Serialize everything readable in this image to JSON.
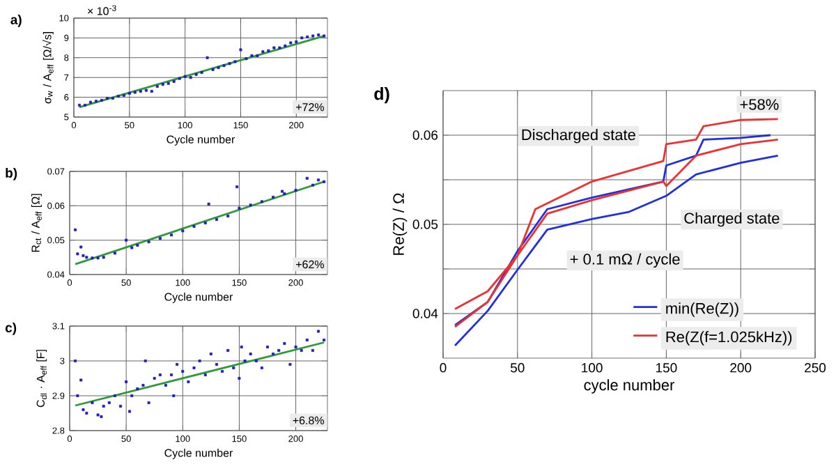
{
  "chart_data": [
    {
      "type": "scatter",
      "title": "a)",
      "xlabel": "Cycle number",
      "ylabel": "σ$_{w}$ / A$_{eff}$ [Ω/√s]",
      "xlim": [
        0,
        228
      ],
      "ylim": [
        5,
        10
      ],
      "xticks": [
        0,
        50,
        100,
        150,
        200
      ],
      "yticks": [
        5,
        6,
        7,
        8,
        9,
        10
      ],
      "grid": true,
      "annotations": [
        "× 10$^{-3}$",
        "+72%"
      ],
      "series": [
        {
          "type": "scatter",
          "marker": "square",
          "color": "#2020c0",
          "x": [
            5,
            10,
            15,
            20,
            25,
            30,
            35,
            40,
            45,
            50,
            55,
            60,
            65,
            70,
            75,
            80,
            85,
            90,
            95,
            100,
            105,
            110,
            115,
            120,
            125,
            130,
            135,
            140,
            145,
            150,
            155,
            160,
            165,
            170,
            175,
            180,
            185,
            190,
            195,
            200,
            205,
            210,
            215,
            220,
            225
          ],
          "values": [
            5.6,
            5.6,
            5.75,
            5.8,
            5.85,
            5.95,
            5.95,
            6.05,
            6.1,
            6.2,
            6.25,
            6.3,
            6.35,
            6.3,
            6.55,
            6.65,
            6.7,
            6.8,
            6.95,
            7.05,
            7.0,
            7.15,
            7.25,
            8.0,
            7.4,
            7.5,
            7.6,
            7.7,
            7.8,
            8.4,
            7.95,
            8.1,
            8.1,
            8.3,
            8.35,
            8.5,
            8.5,
            8.6,
            8.75,
            8.8,
            9.0,
            9.05,
            9.1,
            9.15,
            9.1
          ]
        },
        {
          "type": "line",
          "color": "#2e9a3a",
          "x": [
            5,
            225
          ],
          "values": [
            5.5,
            9.1
          ]
        }
      ]
    },
    {
      "type": "scatter",
      "title": "b)",
      "xlabel": "Cycle number",
      "ylabel": "R$_{ct}$ / A$_{eff}$ [Ω]",
      "xlim": [
        0,
        228
      ],
      "ylim": [
        0.04,
        0.07
      ],
      "xticks": [
        0,
        50,
        100,
        150,
        200
      ],
      "yticks": [
        0.04,
        0.05,
        0.06,
        0.07
      ],
      "grid": true,
      "annotations": [
        "+62%"
      ],
      "series": [
        {
          "type": "scatter",
          "marker": "square",
          "color": "#2020c0",
          "x": [
            5,
            7,
            10,
            12,
            15,
            20,
            25,
            30,
            40,
            50,
            55,
            60,
            70,
            80,
            90,
            100,
            110,
            120,
            123,
            130,
            140,
            148,
            150,
            160,
            170,
            180,
            188,
            190,
            200,
            210,
            215,
            220,
            225
          ],
          "values": [
            0.053,
            0.046,
            0.048,
            0.0455,
            0.045,
            0.0448,
            0.0448,
            0.045,
            0.0462,
            0.05,
            0.0478,
            0.0485,
            0.0495,
            0.0505,
            0.0515,
            0.0527,
            0.054,
            0.055,
            0.0605,
            0.056,
            0.057,
            0.0655,
            0.0593,
            0.0602,
            0.0612,
            0.0625,
            0.0642,
            0.0635,
            0.0645,
            0.068,
            0.066,
            0.0675,
            0.067
          ]
        },
        {
          "type": "line",
          "color": "#2e9a3a",
          "x": [
            5,
            225
          ],
          "values": [
            0.043,
            0.067
          ]
        }
      ]
    },
    {
      "type": "scatter",
      "title": "c)",
      "xlabel": "Cycle number",
      "ylabel": "C$_{dl}$ · A$_{eff}$ [F]",
      "xlim": [
        0,
        228
      ],
      "ylim": [
        2.8,
        3.1
      ],
      "xticks": [
        0,
        50,
        100,
        150,
        200
      ],
      "yticks": [
        2.8,
        2.9,
        3,
        3.1
      ],
      "grid": true,
      "annotations": [
        "+6.8%"
      ],
      "series": [
        {
          "type": "scatter",
          "marker": "square",
          "color": "#2020c0",
          "x": [
            5,
            7,
            10,
            12,
            15,
            20,
            25,
            28,
            30,
            35,
            40,
            45,
            50,
            53,
            55,
            60,
            65,
            67,
            70,
            75,
            80,
            85,
            90,
            92,
            95,
            100,
            105,
            110,
            115,
            120,
            125,
            130,
            135,
            140,
            145,
            150,
            152,
            155,
            160,
            165,
            170,
            175,
            180,
            185,
            190,
            195,
            200,
            205,
            210,
            215,
            220,
            225
          ],
          "values": [
            3.0,
            2.9,
            2.945,
            2.86,
            2.85,
            2.88,
            2.845,
            2.84,
            2.87,
            2.88,
            2.9,
            2.87,
            2.94,
            2.855,
            2.9,
            2.92,
            2.93,
            3.0,
            2.88,
            2.95,
            2.96,
            2.93,
            2.96,
            2.9,
            2.99,
            2.97,
            2.94,
            2.98,
            3.0,
            2.96,
            3.02,
            2.99,
            2.97,
            3.03,
            2.98,
            2.95,
            3.04,
            3.0,
            3.02,
            3.0,
            2.98,
            3.04,
            3.02,
            3.03,
            3.05,
            2.99,
            3.04,
            3.03,
            3.06,
            3.03,
            3.085,
            3.06
          ]
        },
        {
          "type": "line",
          "color": "#2e9a3a",
          "x": [
            5,
            225
          ],
          "values": [
            2.872,
            3.053
          ]
        }
      ]
    },
    {
      "type": "line",
      "title": "d)",
      "xlabel": "cycle number",
      "ylabel": "Re(Z) / Ω",
      "xlim": [
        0,
        250
      ],
      "ylim": [
        0.035,
        0.065
      ],
      "xticks": [
        0,
        50,
        100,
        150,
        200,
        250
      ],
      "yticks": [
        0.04,
        {
          "value": 0.045,
          "label": null
        },
        0.05,
        {
          "value": 0.055,
          "label": null
        },
        0.06
      ],
      "grid": true,
      "legend": "bottom right",
      "annotations": [
        "+58%",
        "Discharged state",
        "Charged state",
        "+ 0.1 mΩ / cycle"
      ],
      "series": [
        {
          "name": "min(Re(Z))",
          "color": "#2030e0",
          "x": [
            8,
            30,
            50,
            70,
            100,
            148,
            150,
            170,
            175,
            200,
            220
          ],
          "values": [
            0.0387,
            0.0413,
            0.047,
            0.0517,
            0.053,
            0.0548,
            0.0566,
            0.0577,
            0.0595,
            0.0597,
            0.06
          ]
        },
        {
          "color": "#2030e0",
          "x": [
            8,
            30,
            50,
            70,
            100,
            125,
            150,
            170,
            200,
            225
          ],
          "values": [
            0.0364,
            0.0403,
            0.0449,
            0.0494,
            0.0506,
            0.0514,
            0.0532,
            0.0556,
            0.0569,
            0.0577
          ]
        },
        {
          "name": "Re(Z(f=1.025kHz))",
          "color": "#f03030",
          "x": [
            8,
            30,
            50,
            62,
            100,
            148,
            150,
            170,
            175,
            200,
            225
          ],
          "values": [
            0.0405,
            0.0425,
            0.0465,
            0.0517,
            0.0548,
            0.0571,
            0.059,
            0.0595,
            0.061,
            0.0617,
            0.0618
          ]
        },
        {
          "color": "#f03030",
          "x": [
            8,
            30,
            50,
            70,
            100,
            148,
            150,
            170,
            200,
            225
          ],
          "values": [
            0.0385,
            0.0413,
            0.0465,
            0.0512,
            0.0527,
            0.0548,
            0.0543,
            0.0577,
            0.059,
            0.0595
          ]
        }
      ]
    }
  ]
}
